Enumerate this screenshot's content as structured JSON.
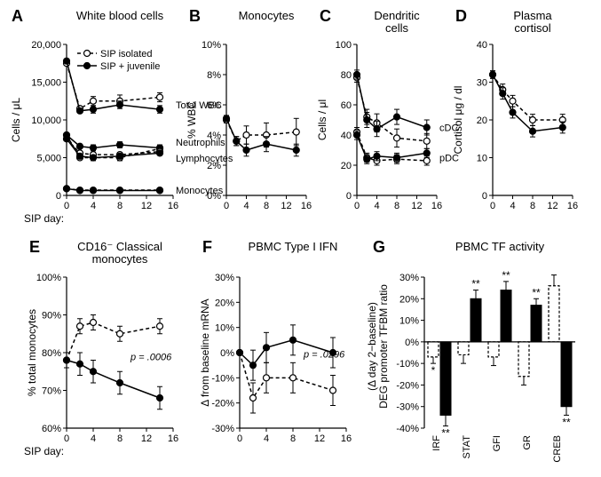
{
  "colors": {
    "fg": "#000000",
    "bg": "#ffffff",
    "open": "#ffffff",
    "closed": "#000000"
  },
  "legend": {
    "isolated": "SIP isolated",
    "juvenile": "SIP + juvenile"
  },
  "xAxis": {
    "label": "SIP day:",
    "ticks": [
      0,
      4,
      8,
      12,
      16
    ]
  },
  "panels": {
    "A": {
      "letter": "A",
      "title": "White blood cells",
      "ylabel": "Cells / μL",
      "ylim": [
        0,
        20000
      ],
      "yticks": [
        0,
        5000,
        10000,
        15000,
        20000
      ],
      "ytick_labels": [
        "0",
        "5,000",
        "10,000",
        "15,000",
        "20,000"
      ],
      "series": {
        "totalWBC_iso": {
          "x": [
            0,
            2,
            4,
            8,
            14
          ],
          "y": [
            17500,
            11500,
            12500,
            12500,
            13000
          ],
          "err": [
            0,
            0,
            600,
            800,
            600
          ],
          "style": "open"
        },
        "totalWBC_juv": {
          "x": [
            0,
            2,
            4,
            8,
            14
          ],
          "y": [
            17800,
            11200,
            11400,
            12000,
            11400
          ],
          "err": [
            0,
            0,
            500,
            500,
            500
          ],
          "style": "closed"
        },
        "neutro_iso": {
          "x": [
            0,
            2,
            4,
            8,
            14
          ],
          "y": [
            8000,
            5000,
            5000,
            5000,
            6200
          ],
          "err": [
            0,
            0,
            400,
            400,
            400
          ],
          "style": "open"
        },
        "neutro_juv": {
          "x": [
            0,
            2,
            4,
            8,
            14
          ],
          "y": [
            8000,
            6500,
            6300,
            6700,
            6300
          ],
          "err": [
            0,
            0,
            400,
            400,
            400
          ],
          "style": "closed"
        },
        "lympho_iso": {
          "x": [
            0,
            2,
            4,
            8,
            14
          ],
          "y": [
            7500,
            5600,
            5400,
            5400,
            5800
          ],
          "err": [
            0,
            0,
            300,
            300,
            300
          ],
          "style": "open"
        },
        "lympho_juv": {
          "x": [
            0,
            2,
            4,
            8,
            14
          ],
          "y": [
            7500,
            5200,
            5000,
            5200,
            5600
          ],
          "err": [
            0,
            0,
            300,
            300,
            300
          ],
          "style": "closed"
        },
        "mono_iso": {
          "x": [
            0,
            2,
            4,
            8,
            14
          ],
          "y": [
            900,
            700,
            700,
            700,
            700
          ],
          "err": [
            0,
            0,
            0,
            0,
            0
          ],
          "style": "open"
        },
        "mono_juv": {
          "x": [
            0,
            2,
            4,
            8,
            14
          ],
          "y": [
            900,
            650,
            650,
            650,
            650
          ],
          "err": [
            0,
            0,
            0,
            0,
            0
          ],
          "style": "closed"
        }
      },
      "labels": {
        "total": "Total WBC",
        "neutro": "Neutrophils",
        "lympho": "Lymphocytes",
        "mono": "Monocytes"
      }
    },
    "B": {
      "letter": "B",
      "title": "Monocytes",
      "ylabel": "% WBC",
      "ylim": [
        0,
        10
      ],
      "yticks": [
        0,
        2,
        4,
        6,
        8,
        10
      ],
      "ytick_labels": [
        "0%",
        "2%",
        "4%",
        "6%",
        "8%",
        "10%"
      ],
      "series": {
        "iso": {
          "x": [
            0,
            2,
            4,
            8,
            14
          ],
          "y": [
            5.0,
            3.6,
            4.0,
            4.0,
            4.2
          ],
          "err": [
            0.2,
            0.3,
            0.6,
            0.8,
            0.9
          ],
          "style": "open"
        },
        "juv": {
          "x": [
            0,
            2,
            4,
            8,
            14
          ],
          "y": [
            5.1,
            3.6,
            3.0,
            3.4,
            3.0
          ],
          "err": [
            0.2,
            0.3,
            0.4,
            0.5,
            0.4
          ],
          "style": "closed"
        }
      }
    },
    "C": {
      "letter": "C",
      "title": "Dendritic\ncells",
      "ylabel": "Cells / μl",
      "ylim": [
        0,
        100
      ],
      "yticks": [
        0,
        20,
        40,
        60,
        80,
        100
      ],
      "ytick_labels": [
        "0",
        "20",
        "40",
        "60",
        "80",
        "100"
      ],
      "series": {
        "cDC_iso": {
          "x": [
            0,
            2,
            4,
            8,
            14
          ],
          "y": [
            78,
            52,
            48,
            38,
            36
          ],
          "err": [
            3,
            5,
            6,
            6,
            5
          ],
          "style": "open"
        },
        "cDC_juv": {
          "x": [
            0,
            2,
            4,
            8,
            14
          ],
          "y": [
            80,
            50,
            44,
            52,
            45
          ],
          "err": [
            3,
            5,
            5,
            5,
            5
          ],
          "style": "closed"
        },
        "pDC_iso": {
          "x": [
            0,
            2,
            4,
            8,
            14
          ],
          "y": [
            42,
            25,
            23,
            24,
            23
          ],
          "err": [
            3,
            3,
            3,
            3,
            3
          ],
          "style": "open"
        },
        "pDC_juv": {
          "x": [
            0,
            2,
            4,
            8,
            14
          ],
          "y": [
            40,
            24,
            26,
            25,
            28
          ],
          "err": [
            3,
            3,
            3,
            3,
            3
          ],
          "style": "closed"
        }
      },
      "labels": {
        "cDC": "cDC",
        "pDC": "pDC"
      }
    },
    "D": {
      "letter": "D",
      "title": "Plasma\ncortisol",
      "ylabel": "Cortisol μg / dl",
      "ylim": [
        0,
        40
      ],
      "yticks": [
        0,
        10,
        20,
        30,
        40
      ],
      "ytick_labels": [
        "0",
        "10",
        "20",
        "30",
        "40"
      ],
      "series": {
        "iso": {
          "x": [
            0,
            2,
            4,
            8,
            14
          ],
          "y": [
            32,
            28,
            25,
            20,
            20
          ],
          "err": [
            1,
            1.5,
            1.5,
            1.5,
            1.5
          ],
          "style": "open"
        },
        "juv": {
          "x": [
            0,
            2,
            4,
            8,
            14
          ],
          "y": [
            32,
            27,
            22,
            17,
            18
          ],
          "err": [
            1,
            1.5,
            1.5,
            1.5,
            1.5
          ],
          "style": "closed"
        }
      }
    },
    "E": {
      "letter": "E",
      "title": "CD16⁻ Classical\nmonocytes",
      "ylabel": "% total monocytes",
      "ylim": [
        60,
        100
      ],
      "yticks": [
        60,
        70,
        80,
        90,
        100
      ],
      "ytick_labels": [
        "60%",
        "70%",
        "80%",
        "90%",
        "100%"
      ],
      "pval": "p = .0006",
      "series": {
        "iso": {
          "x": [
            0,
            2,
            4,
            8,
            14
          ],
          "y": [
            78,
            87,
            88,
            85,
            87
          ],
          "err": [
            2,
            2,
            2,
            2,
            2
          ],
          "style": "open"
        },
        "juv": {
          "x": [
            0,
            2,
            4,
            8,
            14
          ],
          "y": [
            78,
            77,
            75,
            72,
            68
          ],
          "err": [
            2,
            3,
            3,
            3,
            3
          ],
          "style": "closed"
        }
      }
    },
    "F": {
      "letter": "F",
      "title": "PBMC Type I IFN",
      "ylabel": "Δ from baseline mRNA",
      "ylim": [
        -30,
        30
      ],
      "yticks": [
        -30,
        -20,
        -10,
        0,
        10,
        20,
        30
      ],
      "ytick_labels": [
        "-30%",
        "-20%",
        "-10%",
        "0%",
        "10%",
        "20%",
        "30%"
      ],
      "pval": "p = .0296",
      "series": {
        "iso": {
          "x": [
            0,
            2,
            4,
            8,
            14
          ],
          "y": [
            0,
            -18,
            -10,
            -10,
            -15
          ],
          "err": [
            0,
            6,
            6,
            6,
            6
          ],
          "style": "open"
        },
        "juv": {
          "x": [
            0,
            2,
            4,
            8,
            14
          ],
          "y": [
            0,
            -5,
            2,
            5,
            0
          ],
          "err": [
            0,
            6,
            6,
            6,
            6
          ],
          "style": "closed"
        }
      }
    },
    "G": {
      "letter": "G",
      "title": "PBMC TF activity",
      "ylabel": "DEG promoter TFBM ratio\n(Δ day 2−baseline)",
      "ylim": [
        -40,
        30
      ],
      "yticks": [
        -40,
        -30,
        -20,
        -10,
        0,
        10,
        20,
        30
      ],
      "ytick_labels": [
        "-40%",
        "-30%",
        "-20%",
        "-10%",
        "0%",
        "10%",
        "20%",
        "30%"
      ],
      "categories": [
        "IRF",
        "STAT",
        "GFI",
        "GR",
        "CREB"
      ],
      "bars": {
        "iso": {
          "y": [
            -7,
            -6,
            -7,
            -16,
            26
          ],
          "err": [
            3,
            4,
            4,
            4,
            5
          ],
          "sig": [
            "*",
            "",
            "",
            "",
            ""
          ],
          "style": "open"
        },
        "juv": {
          "y": [
            -34,
            20,
            24,
            17,
            -30
          ],
          "err": [
            5,
            4,
            4,
            3,
            4
          ],
          "sig": [
            "**",
            "**",
            "**",
            "**",
            "**"
          ],
          "style": "closed"
        }
      }
    }
  }
}
